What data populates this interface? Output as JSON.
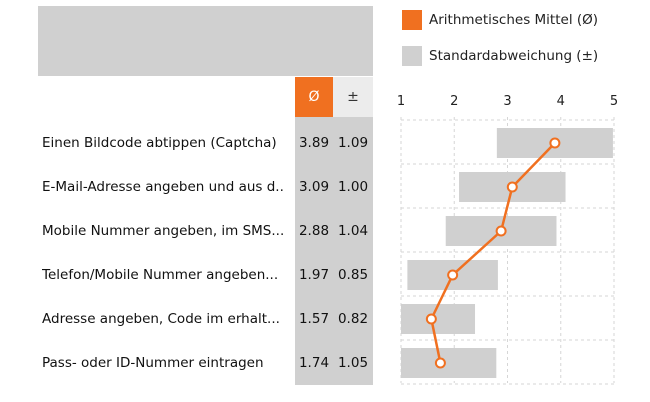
{
  "columns": {
    "mean_label": "Ø",
    "sd_label": "±"
  },
  "legend": {
    "mean": {
      "label": "Arithmetisches Mittel (Ø)",
      "color": "#f07020"
    },
    "sd": {
      "label": "Standardabweichung (±)",
      "color": "#d0d0d0"
    }
  },
  "chart_data": {
    "type": "line",
    "xlim": [
      1,
      5
    ],
    "x_ticks": [
      "1",
      "2",
      "3",
      "4",
      "5"
    ],
    "grid": true,
    "legend_position": "top-right",
    "rows": [
      {
        "label": "Einen Bildcode abtippen (Captcha)",
        "mean": 3.89,
        "sd": 1.09,
        "mean_text": "3.89",
        "sd_text": "1.09"
      },
      {
        "label": "E-Mail-Adresse angeben und aus d..",
        "mean": 3.09,
        "sd": 1.0,
        "mean_text": "3.09",
        "sd_text": "1.00"
      },
      {
        "label": "Mobile Nummer angeben, im SMS...",
        "mean": 2.88,
        "sd": 1.04,
        "mean_text": "2.88",
        "sd_text": "1.04"
      },
      {
        "label": "Telefon/Mobile Nummer angeben...",
        "mean": 1.97,
        "sd": 0.85,
        "mean_text": "1.97",
        "sd_text": "0.85"
      },
      {
        "label": "Adresse angeben, Code im erhalt...",
        "mean": 1.57,
        "sd": 0.82,
        "mean_text": "1.57",
        "sd_text": "0.82"
      },
      {
        "label": "Pass- oder ID-Nummer eintragen",
        "mean": 1.74,
        "sd": 1.05,
        "mean_text": "1.74",
        "sd_text": "1.05"
      }
    ]
  }
}
